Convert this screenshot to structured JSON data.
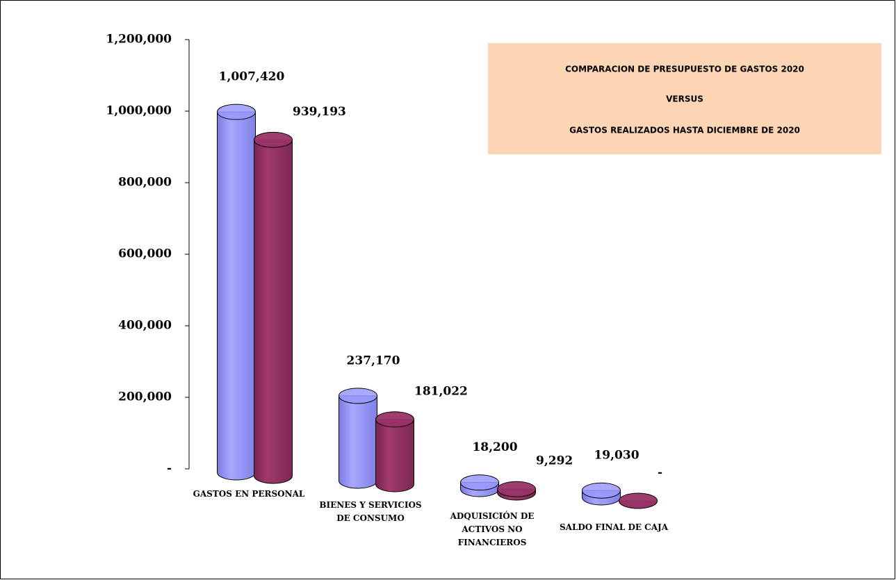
{
  "chart_data": {
    "type": "bar3d-cylinder",
    "title": [
      "COMPARACION  DE  PRESUPUESTO  DE  GASTOS  2020",
      "VERSUS",
      "GASTOS  REALIZADOS  HASTA DICIEMBRE DE 2020"
    ],
    "categories": [
      "GASTOS EN PERSONAL",
      "BIENES Y SERVICIOS DE CONSUMO",
      "ADQUISICIÓN DE ACTIVOS NO FINANCIEROS",
      "SALDO FINAL DE CAJA"
    ],
    "series": [
      {
        "color": "#9999ff",
        "values": [
          1007420,
          237170,
          18200,
          19030
        ],
        "value_labels": [
          "1,007,420",
          "237,170",
          "18,200",
          "19,030"
        ]
      },
      {
        "color": "#993366",
        "values": [
          939193,
          181022,
          9292,
          0
        ],
        "value_labels": [
          "939,193",
          "181,022",
          "9,292",
          "-"
        ]
      }
    ],
    "ylim": [
      0,
      1200000
    ],
    "yticks": [
      {
        "value": 0,
        "label": "-"
      },
      {
        "value": 200000,
        "label": "200,000"
      },
      {
        "value": 400000,
        "label": "400,000"
      },
      {
        "value": 600000,
        "label": "600,000"
      },
      {
        "value": 800000,
        "label": "800,000"
      },
      {
        "value": 1000000,
        "label": "1,000,000"
      },
      {
        "value": 1200000,
        "label": "1,200,000"
      }
    ]
  }
}
